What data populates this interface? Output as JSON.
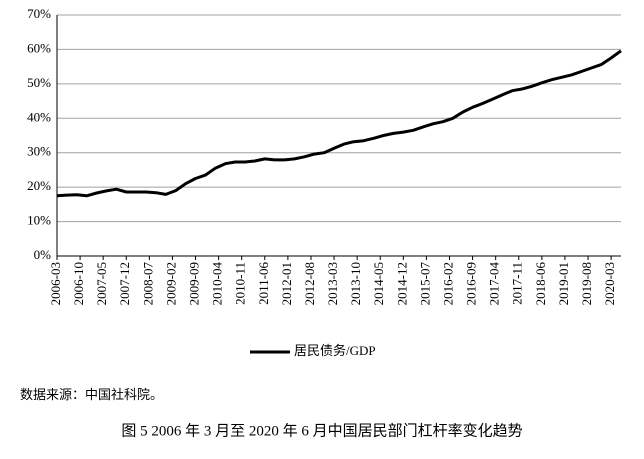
{
  "chart_data": {
    "type": "line",
    "x": [
      "2006-03",
      "2006-06",
      "2006-09",
      "2006-12",
      "2007-03",
      "2007-06",
      "2007-09",
      "2007-12",
      "2008-03",
      "2008-06",
      "2008-09",
      "2008-12",
      "2009-03",
      "2009-06",
      "2009-09",
      "2009-12",
      "2010-03",
      "2010-06",
      "2010-09",
      "2010-12",
      "2011-03",
      "2011-06",
      "2011-09",
      "2011-12",
      "2012-03",
      "2012-06",
      "2012-09",
      "2012-12",
      "2013-03",
      "2013-06",
      "2013-09",
      "2013-12",
      "2014-03",
      "2014-06",
      "2014-09",
      "2014-12",
      "2015-03",
      "2015-06",
      "2015-09",
      "2015-12",
      "2016-03",
      "2016-06",
      "2016-09",
      "2016-12",
      "2017-03",
      "2017-06",
      "2017-09",
      "2017-12",
      "2018-03",
      "2018-06",
      "2018-09",
      "2018-12",
      "2019-03",
      "2019-06",
      "2019-09",
      "2019-12",
      "2020-03",
      "2020-06"
    ],
    "series": [
      {
        "name": "居民债务/GDP",
        "color": "#000000",
        "values": [
          17.5,
          17.7,
          17.8,
          17.5,
          18.3,
          18.9,
          19.4,
          18.6,
          18.6,
          18.6,
          18.4,
          17.9,
          19.0,
          21.0,
          22.5,
          23.5,
          25.5,
          26.8,
          27.3,
          27.3,
          27.6,
          28.2,
          27.9,
          27.9,
          28.2,
          28.8,
          29.6,
          30.0,
          31.3,
          32.5,
          33.2,
          33.5,
          34.2,
          35.0,
          35.6,
          36.0,
          36.5,
          37.5,
          38.4,
          39.0,
          40.0,
          41.8,
          43.2,
          44.3,
          45.5,
          46.8,
          48.0,
          48.5,
          49.3,
          50.3,
          51.2,
          51.9,
          52.6,
          53.6,
          54.6,
          55.6,
          57.5,
          59.6
        ]
      }
    ],
    "xticks": [
      "2006-03",
      "2006-10",
      "2007-05",
      "2007-12",
      "2008-07",
      "2009-02",
      "2009-09",
      "2010-04",
      "2010-11",
      "2011-06",
      "2012-01",
      "2012-08",
      "2013-03",
      "2013-10",
      "2014-05",
      "2014-12",
      "2015-07",
      "2016-02",
      "2016-09",
      "2017-04",
      "2017-11",
      "2018-06",
      "2019-01",
      "2019-08",
      "2020-03"
    ],
    "ylim": [
      0,
      70
    ],
    "yticks": [
      {
        "value": 0,
        "label": "0%"
      },
      {
        "value": 10,
        "label": "10%"
      },
      {
        "value": 20,
        "label": "20%"
      },
      {
        "value": 30,
        "label": "30%"
      },
      {
        "value": 40,
        "label": "40%"
      },
      {
        "value": 50,
        "label": "50%"
      },
      {
        "value": 60,
        "label": "60%"
      },
      {
        "value": 70,
        "label": "70%"
      }
    ],
    "grid": true,
    "legend": "bottom",
    "source": "数据来源：中国社科院。",
    "caption": "图 5 2006 年 3 月至 2020 年 6 月中国居民部门杠杆率变化趋势"
  }
}
